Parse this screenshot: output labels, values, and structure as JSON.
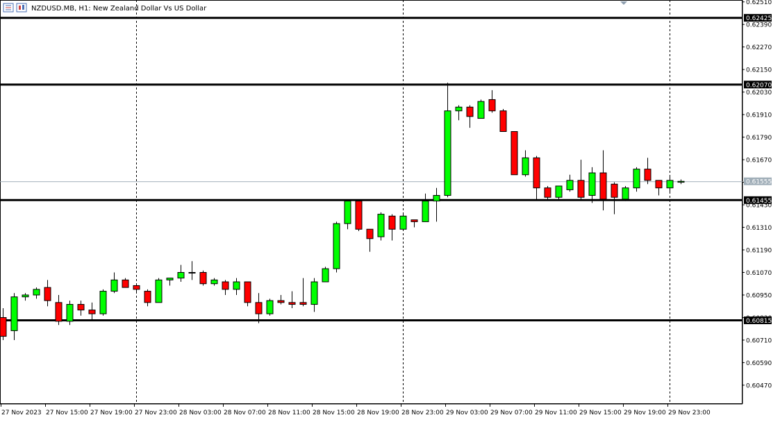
{
  "header": {
    "title": "NZDUSD.MB, H1:  New Zealand Dollar Vs US Dollar",
    "icon_names": [
      "chart-bars-icon",
      "chart-candles-icon"
    ]
  },
  "chart_data": {
    "type": "candlestick",
    "symbol": "NZDUSD.MB",
    "timeframe": "H1",
    "description": "New Zealand Dollar Vs US Dollar",
    "ylim": [
      0.6037,
      0.6252
    ],
    "y_ticks": [
      0.6251,
      0.6239,
      0.6227,
      0.6215,
      0.6203,
      0.6191,
      0.6179,
      0.6167,
      0.6155,
      0.6143,
      0.6131,
      0.6119,
      0.6107,
      0.6095,
      0.6083,
      0.6071,
      0.6059,
      0.6047
    ],
    "y_tick_labels": [
      "0.62510",
      "0.62390",
      "0.62270",
      "0.62150",
      "0.62030",
      "0.61910",
      "0.61790",
      "0.61670",
      "0.61550",
      "0.61430",
      "0.61310",
      "0.61190",
      "0.61070",
      "0.60950",
      "0.60830",
      "0.60710",
      "0.60590",
      "0.60470"
    ],
    "x_labels": [
      "27 Nov 2023",
      "27 Nov 15:00",
      "27 Nov 19:00",
      "27 Nov 23:00",
      "28 Nov 03:00",
      "28 Nov 07:00",
      "28 Nov 11:00",
      "28 Nov 15:00",
      "28 Nov 19:00",
      "28 Nov 23:00",
      "29 Nov 03:00",
      "29 Nov 07:00",
      "29 Nov 11:00",
      "29 Nov 15:00",
      "29 Nov 19:00",
      "29 Nov 23:00"
    ],
    "day_separators_after_label": [
      "27 Nov 23:00",
      "28 Nov 23:00",
      "29 Nov 23:00"
    ],
    "levels": [
      {
        "value": 0.62425,
        "label": "0.62425"
      },
      {
        "value": 0.6207,
        "label": "0.62070"
      },
      {
        "value": 0.61455,
        "label": "0.61455"
      },
      {
        "value": 0.60815,
        "label": "0.60815"
      }
    ],
    "current_price": {
      "value": 0.61555,
      "label": "0.61555"
    },
    "colors": {
      "bull": "#00ff00",
      "bear": "#ff0000",
      "outline": "#000000",
      "level": "#000000",
      "price_line": "#a0aeb8",
      "axis_text": "#000000"
    },
    "candles": [
      {
        "o": 0.6083,
        "h": 0.6088,
        "l": 0.6071,
        "c": 0.6073
      },
      {
        "o": 0.6076,
        "h": 0.6096,
        "l": 0.6071,
        "c": 0.6094
      },
      {
        "o": 0.6094,
        "h": 0.6096,
        "l": 0.6092,
        "c": 0.6095
      },
      {
        "o": 0.6095,
        "h": 0.6099,
        "l": 0.6093,
        "c": 0.6098
      },
      {
        "o": 0.6099,
        "h": 0.6103,
        "l": 0.6089,
        "c": 0.6092
      },
      {
        "o": 0.6091,
        "h": 0.6095,
        "l": 0.6079,
        "c": 0.6081
      },
      {
        "o": 0.6081,
        "h": 0.6092,
        "l": 0.6079,
        "c": 0.609
      },
      {
        "o": 0.609,
        "h": 0.6092,
        "l": 0.6084,
        "c": 0.6087
      },
      {
        "o": 0.6087,
        "h": 0.6091,
        "l": 0.6082,
        "c": 0.6085
      },
      {
        "o": 0.6085,
        "h": 0.6098,
        "l": 0.6084,
        "c": 0.6097
      },
      {
        "o": 0.6097,
        "h": 0.6107,
        "l": 0.6096,
        "c": 0.6103
      },
      {
        "o": 0.6103,
        "h": 0.6104,
        "l": 0.6099,
        "c": 0.6099
      },
      {
        "o": 0.61,
        "h": 0.61,
        "l": 0.6096,
        "c": 0.6098
      },
      {
        "o": 0.6097,
        "h": 0.6098,
        "l": 0.6089,
        "c": 0.6091
      },
      {
        "o": 0.6091,
        "h": 0.6104,
        "l": 0.6091,
        "c": 0.6103
      },
      {
        "o": 0.6103,
        "h": 0.6104,
        "l": 0.61,
        "c": 0.6104
      },
      {
        "o": 0.6104,
        "h": 0.6111,
        "l": 0.6102,
        "c": 0.6107
      },
      {
        "o": 0.6107,
        "h": 0.6113,
        "l": 0.6103,
        "c": 0.6107
      },
      {
        "o": 0.6107,
        "h": 0.6108,
        "l": 0.61,
        "c": 0.6101
      },
      {
        "o": 0.6101,
        "h": 0.6104,
        "l": 0.61,
        "c": 0.6103
      },
      {
        "o": 0.6102,
        "h": 0.6103,
        "l": 0.6095,
        "c": 0.6098
      },
      {
        "o": 0.6098,
        "h": 0.6104,
        "l": 0.6095,
        "c": 0.6102
      },
      {
        "o": 0.6102,
        "h": 0.6102,
        "l": 0.6089,
        "c": 0.6091
      },
      {
        "o": 0.6091,
        "h": 0.6096,
        "l": 0.608,
        "c": 0.6085
      },
      {
        "o": 0.6085,
        "h": 0.6093,
        "l": 0.6084,
        "c": 0.6092
      },
      {
        "o": 0.6092,
        "h": 0.6095,
        "l": 0.609,
        "c": 0.6091
      },
      {
        "o": 0.6091,
        "h": 0.6097,
        "l": 0.6088,
        "c": 0.609
      },
      {
        "o": 0.6091,
        "h": 0.6104,
        "l": 0.6089,
        "c": 0.609
      },
      {
        "o": 0.609,
        "h": 0.6104,
        "l": 0.6086,
        "c": 0.6102
      },
      {
        "o": 0.6102,
        "h": 0.611,
        "l": 0.6102,
        "c": 0.6109
      },
      {
        "o": 0.6109,
        "h": 0.6134,
        "l": 0.6107,
        "c": 0.6133
      },
      {
        "o": 0.6133,
        "h": 0.6146,
        "l": 0.613,
        "c": 0.6145
      },
      {
        "o": 0.6145,
        "h": 0.6146,
        "l": 0.6129,
        "c": 0.613
      },
      {
        "o": 0.613,
        "h": 0.613,
        "l": 0.6118,
        "c": 0.6125
      },
      {
        "o": 0.6126,
        "h": 0.6139,
        "l": 0.6124,
        "c": 0.6138
      },
      {
        "o": 0.6137,
        "h": 0.6138,
        "l": 0.6124,
        "c": 0.613
      },
      {
        "o": 0.613,
        "h": 0.6138,
        "l": 0.613,
        "c": 0.6137
      },
      {
        "o": 0.6135,
        "h": 0.6135,
        "l": 0.6131,
        "c": 0.6134
      },
      {
        "o": 0.6134,
        "h": 0.6149,
        "l": 0.6134,
        "c": 0.6145
      },
      {
        "o": 0.6145,
        "h": 0.6152,
        "l": 0.6134,
        "c": 0.6148
      },
      {
        "o": 0.6148,
        "h": 0.6208,
        "l": 0.6147,
        "c": 0.6193
      },
      {
        "o": 0.6193,
        "h": 0.6196,
        "l": 0.6188,
        "c": 0.6195
      },
      {
        "o": 0.6195,
        "h": 0.6196,
        "l": 0.6184,
        "c": 0.619
      },
      {
        "o": 0.6189,
        "h": 0.6199,
        "l": 0.6189,
        "c": 0.6198
      },
      {
        "o": 0.6199,
        "h": 0.6204,
        "l": 0.6192,
        "c": 0.6193
      },
      {
        "o": 0.6193,
        "h": 0.6194,
        "l": 0.6182,
        "c": 0.6182
      },
      {
        "o": 0.6182,
        "h": 0.6182,
        "l": 0.6159,
        "c": 0.6159
      },
      {
        "o": 0.6159,
        "h": 0.6172,
        "l": 0.6158,
        "c": 0.6168
      },
      {
        "o": 0.6168,
        "h": 0.6169,
        "l": 0.6146,
        "c": 0.6152
      },
      {
        "o": 0.6152,
        "h": 0.6153,
        "l": 0.6146,
        "c": 0.6147
      },
      {
        "o": 0.6147,
        "h": 0.6153,
        "l": 0.6146,
        "c": 0.6153
      },
      {
        "o": 0.6151,
        "h": 0.6159,
        "l": 0.615,
        "c": 0.6156
      },
      {
        "o": 0.6156,
        "h": 0.6167,
        "l": 0.6146,
        "c": 0.6147
      },
      {
        "o": 0.6148,
        "h": 0.6163,
        "l": 0.6144,
        "c": 0.616
      },
      {
        "o": 0.616,
        "h": 0.6172,
        "l": 0.614,
        "c": 0.6146
      },
      {
        "o": 0.6154,
        "h": 0.6155,
        "l": 0.6138,
        "c": 0.6147
      },
      {
        "o": 0.6146,
        "h": 0.6153,
        "l": 0.6145,
        "c": 0.6152
      },
      {
        "o": 0.6152,
        "h": 0.6163,
        "l": 0.615,
        "c": 0.6162
      },
      {
        "o": 0.6162,
        "h": 0.6168,
        "l": 0.6154,
        "c": 0.6156
      },
      {
        "o": 0.6156,
        "h": 0.6156,
        "l": 0.6148,
        "c": 0.6152
      },
      {
        "o": 0.6152,
        "h": 0.6158,
        "l": 0.615,
        "c": 0.6156
      },
      {
        "o": 0.6155,
        "h": 0.61565,
        "l": 0.6154,
        "c": 0.61555
      }
    ]
  }
}
